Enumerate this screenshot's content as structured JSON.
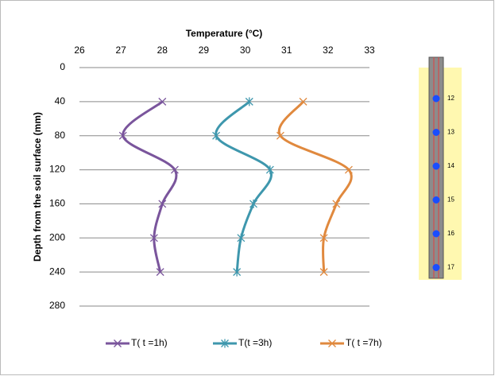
{
  "chart_data": {
    "type": "line",
    "title": "Temperature (°C)",
    "y_label": "Depth from the soil surface (mm)",
    "y": [
      40,
      80,
      120,
      160,
      200,
      240
    ],
    "series": [
      {
        "name": "T( t =1h)",
        "color": "#7a559c",
        "marker": "x",
        "values": [
          28.0,
          27.05,
          28.3,
          28.0,
          27.8,
          27.95
        ]
      },
      {
        "name": "T(t =3h)",
        "color": "#3e97ad",
        "marker": "star",
        "values": [
          30.1,
          29.3,
          30.6,
          30.2,
          29.9,
          29.8
        ]
      },
      {
        "name": "T( t =7h)",
        "color": "#e0893e",
        "marker": "x",
        "values": [
          31.4,
          30.85,
          32.5,
          32.2,
          31.9,
          31.9
        ]
      }
    ],
    "xlim": [
      26,
      33
    ],
    "xticks": [
      26,
      27,
      28,
      29,
      30,
      31,
      32,
      33
    ],
    "ylim": [
      0,
      280
    ],
    "yticks": [
      0,
      40,
      80,
      120,
      160,
      200,
      240,
      280
    ],
    "grid": true,
    "legend": "bottom"
  },
  "diagram": {
    "sensors": [
      "12",
      "13",
      "14",
      "15",
      "16",
      "17"
    ]
  }
}
